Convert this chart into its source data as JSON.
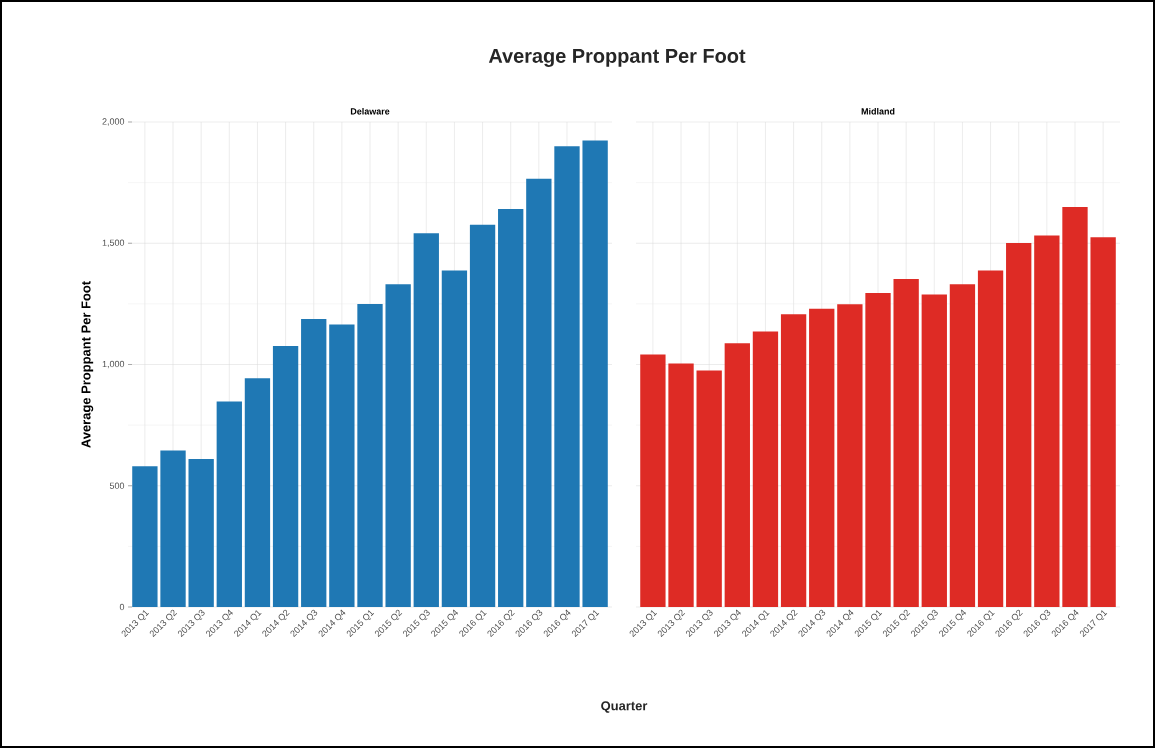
{
  "chart_data": [
    {
      "type": "bar",
      "title": "Average Proppant Per Foot",
      "subtitle": "Delaware",
      "xlabel": "Quarter",
      "ylabel": "Average Proppant Per Foot",
      "categories": [
        "2013 Q1",
        "2013 Q2",
        "2013 Q3",
        "2013 Q4",
        "2014 Q1",
        "2014 Q2",
        "2014 Q3",
        "2014 Q4",
        "2015 Q1",
        "2015 Q2",
        "2015 Q3",
        "2015 Q4",
        "2016 Q1",
        "2016 Q2",
        "2016 Q3",
        "2016 Q4",
        "2017 Q1"
      ],
      "values": [
        580,
        645,
        610,
        847,
        943,
        1076,
        1188,
        1165,
        1249,
        1331,
        1541,
        1388,
        1576,
        1641,
        1766,
        1900,
        1924
      ],
      "color": "#1f78b4",
      "ylim": [
        0,
        2000
      ],
      "yticks": [
        0,
        500,
        {
          "value": 1000,
          "label": "1,000"
        },
        {
          "value": 1500,
          "label": "1,500"
        },
        {
          "value": 2000,
          "label": "2,000"
        }
      ],
      "grid": true
    },
    {
      "type": "bar",
      "subtitle": "Midland",
      "categories": [
        "2013 Q1",
        "2013 Q2",
        "2013 Q3",
        "2013 Q4",
        "2014 Q1",
        "2014 Q2",
        "2014 Q3",
        "2014 Q4",
        "2015 Q1",
        "2015 Q2",
        "2015 Q3",
        "2015 Q4",
        "2016 Q1",
        "2016 Q2",
        "2016 Q3",
        "2016 Q4",
        "2017 Q1"
      ],
      "values": [
        1041,
        1004,
        975,
        1088,
        1136,
        1207,
        1230,
        1248,
        1295,
        1353,
        1289,
        1331,
        1388,
        1501,
        1532,
        1649,
        1525
      ],
      "color": "#de2b25",
      "ylim": [
        0,
        2000
      ],
      "yticks": [
        0,
        500,
        1000,
        1500,
        2000
      ],
      "grid": true,
      "tick_labels": "x"
    }
  ]
}
